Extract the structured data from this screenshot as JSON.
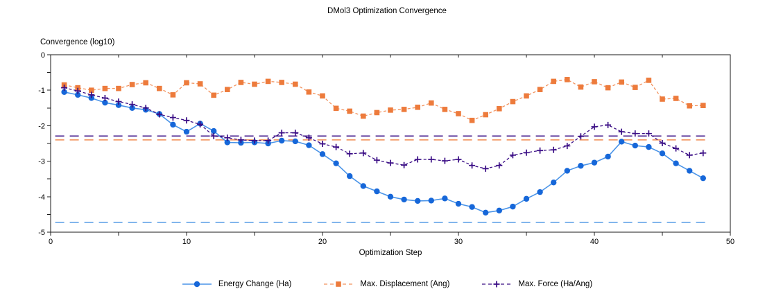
{
  "chart_data": {
    "type": "line",
    "title": "DMol3 Optimization Convergence",
    "xlabel": "Optimization Step",
    "ylabel": "Convergence (log10)",
    "xlim": [
      0,
      50
    ],
    "ylim": [
      -5,
      0
    ],
    "grid": false,
    "legend_position": "bottom-center",
    "x_ticks": [
      0,
      10,
      20,
      30,
      40,
      50
    ],
    "x_minor_tick_step": 5,
    "y_ticks": [
      0,
      -1,
      -2,
      -3,
      -4,
      -5
    ],
    "y_minor_tick_step": 0.5,
    "axis_color": "#1a1a1a",
    "x": [
      1,
      2,
      3,
      4,
      5,
      6,
      7,
      8,
      9,
      10,
      11,
      12,
      13,
      14,
      15,
      16,
      17,
      18,
      19,
      20,
      21,
      22,
      23,
      24,
      25,
      26,
      27,
      28,
      29,
      30,
      31,
      32,
      33,
      34,
      35,
      36,
      37,
      38,
      39,
      40,
      41,
      42,
      43,
      44,
      45,
      46,
      47,
      48
    ],
    "series": [
      {
        "key": "energy-change",
        "name": "Energy Change (Ha)",
        "marker": "circle",
        "line": "solid",
        "line_color": "#4A94E8",
        "marker_color": "#1667D9",
        "values": [
          -1.05,
          -1.13,
          -1.22,
          -1.35,
          -1.42,
          -1.5,
          -1.55,
          -1.67,
          -1.97,
          -2.17,
          -1.94,
          -2.15,
          -2.47,
          -2.48,
          -2.47,
          -2.5,
          -2.42,
          -2.44,
          -2.55,
          -2.8,
          -3.06,
          -3.42,
          -3.7,
          -3.85,
          -4.0,
          -4.08,
          -4.12,
          -4.11,
          -4.05,
          -4.2,
          -4.29,
          -4.45,
          -4.39,
          -4.28,
          -4.06,
          -3.87,
          -3.6,
          -3.27,
          -3.13,
          -3.04,
          -2.87,
          -2.45,
          -2.56,
          -2.6,
          -2.78,
          -3.06,
          -3.27,
          -3.48
        ]
      },
      {
        "key": "max-displacement",
        "name": "Max. Displacement (Ang)",
        "marker": "square",
        "line": "dashed",
        "line_color": "#F2925E",
        "marker_color": "#ED7B3C",
        "values": [
          -0.85,
          -0.93,
          -1.0,
          -0.95,
          -0.95,
          -0.84,
          -0.79,
          -0.95,
          -1.13,
          -0.79,
          -0.82,
          -1.14,
          -0.98,
          -0.78,
          -0.83,
          -0.75,
          -0.78,
          -0.83,
          -1.05,
          -1.16,
          -1.51,
          -1.59,
          -1.73,
          -1.63,
          -1.56,
          -1.54,
          -1.48,
          -1.36,
          -1.54,
          -1.66,
          -1.85,
          -1.69,
          -1.52,
          -1.32,
          -1.16,
          -0.98,
          -0.75,
          -0.7,
          -0.91,
          -0.76,
          -0.93,
          -0.77,
          -0.92,
          -0.72,
          -1.25,
          -1.23,
          -1.44,
          -1.43
        ]
      },
      {
        "key": "max-force",
        "name": "Max. Force (Ha/Ang)",
        "marker": "plus",
        "line": "dashed",
        "line_color": "#3A0D85",
        "marker_color": "#3A0D85",
        "values": [
          -0.93,
          -1.02,
          -1.13,
          -1.22,
          -1.32,
          -1.4,
          -1.5,
          -1.68,
          -1.77,
          -1.85,
          -1.96,
          -2.29,
          -2.34,
          -2.4,
          -2.42,
          -2.42,
          -2.2,
          -2.2,
          -2.34,
          -2.51,
          -2.6,
          -2.79,
          -2.77,
          -2.97,
          -3.05,
          -3.11,
          -2.95,
          -2.95,
          -2.99,
          -2.95,
          -3.12,
          -3.21,
          -3.12,
          -2.83,
          -2.76,
          -2.7,
          -2.68,
          -2.57,
          -2.3,
          -2.03,
          -1.98,
          -2.17,
          -2.22,
          -2.22,
          -2.49,
          -2.64,
          -2.83,
          -2.77
        ]
      }
    ],
    "thresholds": [
      {
        "series": "Energy Change (Ha)",
        "value": -4.72,
        "color": "#3E8EE2",
        "style": "long-dash"
      },
      {
        "series": "Max. Displacement (Ang)",
        "value": -2.4,
        "color": "#F08A50",
        "style": "long-dash"
      },
      {
        "series": "Max. Force (Ha/Ang)",
        "value": -2.29,
        "color": "#3A0D85",
        "style": "long-dash"
      }
    ]
  }
}
